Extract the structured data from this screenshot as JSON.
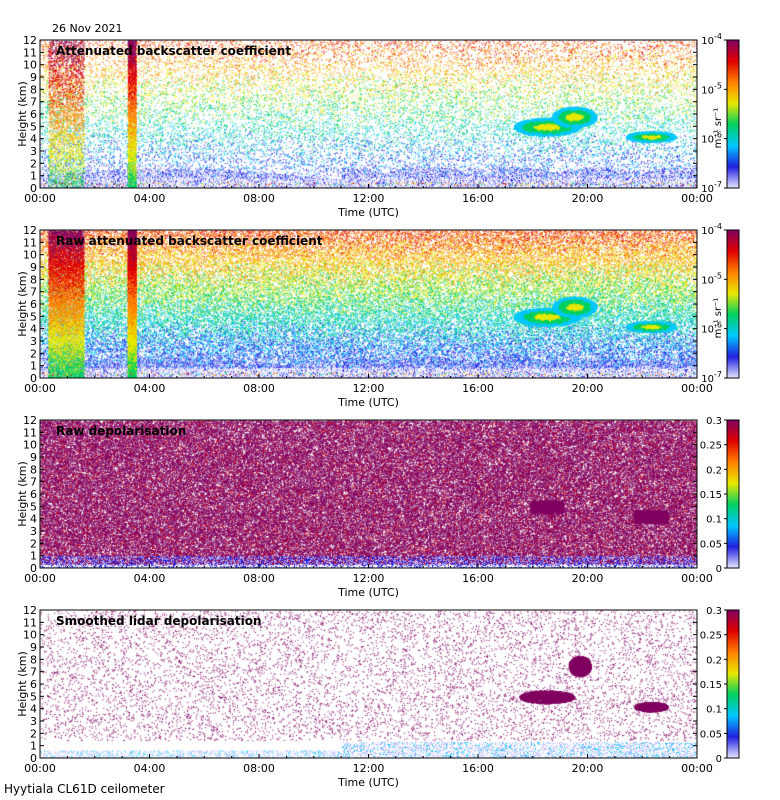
{
  "figure": {
    "date": "26 Nov 2021",
    "footer": "Hyytiala CL61D ceilometer"
  },
  "chart_data": [
    {
      "type": "heatmap",
      "title": "Attenuated backscatter coefficient",
      "xlabel": "Time (UTC)",
      "ylabel": "Height (km)",
      "x_ticks": [
        "00:00",
        "04:00",
        "08:00",
        "12:00",
        "16:00",
        "20:00",
        "00:00"
      ],
      "x_range_hours": [
        0,
        24
      ],
      "y_ticks": [
        "0",
        "1",
        "2",
        "3",
        "4",
        "5",
        "6",
        "7",
        "8",
        "9",
        "10",
        "11",
        "12"
      ],
      "ylim": [
        0,
        12
      ],
      "colorbar": {
        "scale": "log",
        "range": [
          1e-07,
          0.0001
        ],
        "ticks": [
          {
            "base": "10",
            "exp": "-7"
          },
          {
            "base": "10",
            "exp": "-6"
          },
          {
            "base": "10",
            "exp": "-5"
          },
          {
            "base": "10",
            "exp": "-4"
          }
        ],
        "unit": "m⁻¹ sr⁻¹",
        "colormap": [
          "#e6e6ff",
          "#2020e0",
          "#00c8ff",
          "#00d060",
          "#e8e800",
          "#ff8000",
          "#e00000",
          "#800060"
        ]
      }
    },
    {
      "type": "heatmap",
      "title": "Raw attenuated backscatter coefficient",
      "xlabel": "Time (UTC)",
      "ylabel": "Height (km)",
      "x_ticks": [
        "00:00",
        "04:00",
        "08:00",
        "12:00",
        "16:00",
        "20:00",
        "00:00"
      ],
      "x_range_hours": [
        0,
        24
      ],
      "y_ticks": [
        "0",
        "1",
        "2",
        "3",
        "4",
        "5",
        "6",
        "7",
        "8",
        "9",
        "10",
        "11",
        "12"
      ],
      "ylim": [
        0,
        12
      ],
      "colorbar": {
        "scale": "log",
        "range": [
          1e-07,
          0.0001
        ],
        "ticks": [
          {
            "base": "10",
            "exp": "-7"
          },
          {
            "base": "10",
            "exp": "-6"
          },
          {
            "base": "10",
            "exp": "-5"
          },
          {
            "base": "10",
            "exp": "-4"
          }
        ],
        "unit": "m⁻¹ sr⁻¹",
        "colormap": [
          "#e6e6ff",
          "#2020e0",
          "#00c8ff",
          "#00d060",
          "#e8e800",
          "#ff8000",
          "#e00000",
          "#800060"
        ]
      }
    },
    {
      "type": "heatmap",
      "title": "Raw depolarisation",
      "xlabel": "Time (UTC)",
      "ylabel": "Height (km)",
      "x_ticks": [
        "00:00",
        "04:00",
        "08:00",
        "12:00",
        "16:00",
        "20:00",
        "00:00"
      ],
      "x_range_hours": [
        0,
        24
      ],
      "y_ticks": [
        "0",
        "1",
        "2",
        "3",
        "4",
        "5",
        "6",
        "7",
        "8",
        "9",
        "10",
        "11",
        "12"
      ],
      "ylim": [
        0,
        12
      ],
      "colorbar": {
        "scale": "linear",
        "range": [
          0,
          0.3
        ],
        "ticks": [
          "0",
          "0.05",
          "0.1",
          "0.15",
          "0.2",
          "0.25",
          "0.3"
        ],
        "unit": "",
        "colormap": [
          "#e6e6ff",
          "#2020e0",
          "#00c8ff",
          "#00d060",
          "#e8e800",
          "#ff8000",
          "#e00000",
          "#800060"
        ]
      }
    },
    {
      "type": "heatmap",
      "title": "Smoothed lidar depolarisation",
      "xlabel": "Time (UTC)",
      "ylabel": "Height (km)",
      "x_ticks": [
        "00:00",
        "04:00",
        "08:00",
        "12:00",
        "16:00",
        "20:00",
        "00:00"
      ],
      "x_range_hours": [
        0,
        24
      ],
      "y_ticks": [
        "0",
        "1",
        "2",
        "3",
        "4",
        "5",
        "6",
        "7",
        "8",
        "9",
        "10",
        "11",
        "12"
      ],
      "ylim": [
        0,
        12
      ],
      "colorbar": {
        "scale": "linear",
        "range": [
          0,
          0.3
        ],
        "ticks": [
          "0",
          "0.05",
          "0.1",
          "0.15",
          "0.2",
          "0.25",
          "0.3"
        ],
        "unit": "",
        "colormap": [
          "#e6e6ff",
          "#2020e0",
          "#00c8ff",
          "#00d060",
          "#e8e800",
          "#ff8000",
          "#e00000",
          "#800060"
        ]
      }
    }
  ]
}
